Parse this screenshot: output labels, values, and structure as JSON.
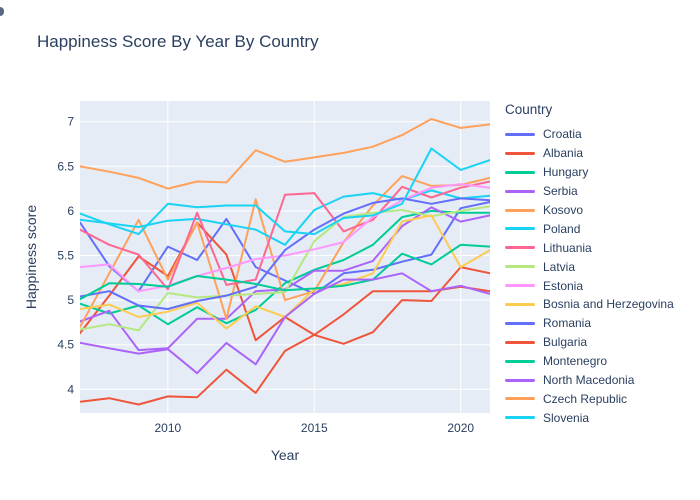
{
  "figure": {
    "background": "#ffffff",
    "plot_background": "#e5ecf6",
    "grid_color": "#ffffff",
    "text_color": "#2a3f5f"
  },
  "chart_data": {
    "type": "line",
    "title": "Happiness Score By Year By Country",
    "xlabel": "Year",
    "ylabel": "Happiness score",
    "legend_title": "Country",
    "legend_position": "right",
    "grid": true,
    "xlim": [
      2007,
      2021
    ],
    "ylim": [
      3.73,
      7.25
    ],
    "xticks": [
      2010,
      2015,
      2020
    ],
    "xtick_labels": [
      "2010",
      "2015",
      "2020"
    ],
    "yticks": [
      4,
      4.5,
      5,
      5.5,
      6,
      6.5,
      7
    ],
    "ytick_labels": [
      "4",
      "4.5",
      "5",
      "5.5",
      "6",
      "6.5",
      "7"
    ],
    "x": [
      2007,
      2008,
      2009,
      2010,
      2011,
      2012,
      2013,
      2014,
      2015,
      2016,
      2017,
      2018,
      2019,
      2020,
      2021
    ],
    "series": [
      {
        "name": "Croatia",
        "color": "#636EFA",
        "values": [
          5.87,
          5.38,
          5.1,
          5.6,
          5.45,
          5.91,
          5.37,
          5.22,
          5.07,
          5.3,
          5.34,
          5.43,
          5.51,
          6.03,
          6.1
        ]
      },
      {
        "name": "Albania",
        "color": "#EF553B",
        "values": [
          4.63,
          5.05,
          5.49,
          5.27,
          5.87,
          5.51,
          4.55,
          4.81,
          4.61,
          4.51,
          4.64,
          5.0,
          4.99,
          5.37,
          5.3
        ]
      },
      {
        "name": "Hungary",
        "color": "#00CC96",
        "values": [
          4.96,
          4.85,
          4.94,
          4.73,
          4.92,
          4.74,
          4.89,
          5.19,
          5.34,
          5.45,
          5.62,
          5.93,
          6.0,
          5.98,
          5.98
        ]
      },
      {
        "name": "Serbia",
        "color": "#AB63FA",
        "values": [
          4.76,
          4.88,
          4.44,
          4.46,
          4.79,
          4.79,
          5.1,
          5.12,
          5.33,
          5.33,
          5.44,
          5.83,
          6.04,
          5.88,
          5.95
        ]
      },
      {
        "name": "Kosovo",
        "color": "#FFA15A",
        "values": [
          4.7,
          5.3,
          5.9,
          5.23,
          5.87,
          4.79,
          6.13,
          5.0,
          5.1,
          5.65,
          6.06,
          6.39,
          6.28,
          6.29,
          6.37
        ]
      },
      {
        "name": "Poland",
        "color": "#19D3F3",
        "values": [
          5.9,
          5.86,
          5.82,
          5.89,
          5.91,
          5.85,
          5.79,
          5.62,
          6.01,
          6.16,
          6.2,
          6.12,
          6.23,
          6.14,
          6.17
        ]
      },
      {
        "name": "Lithuania",
        "color": "#FF6692",
        "values": [
          5.79,
          5.62,
          5.51,
          5.12,
          5.98,
          5.17,
          5.23,
          6.18,
          6.2,
          5.77,
          5.9,
          6.27,
          6.15,
          6.26,
          6.33
        ]
      },
      {
        "name": "Latvia",
        "color": "#B6E880",
        "values": [
          4.67,
          4.73,
          4.66,
          5.08,
          5.03,
          5.05,
          5.07,
          5.09,
          5.66,
          5.93,
          5.98,
          6.01,
          5.94,
          6.0,
          6.05
        ]
      },
      {
        "name": "Estonia",
        "color": "#FF97FF",
        "values": [
          5.37,
          5.4,
          5.1,
          5.16,
          5.27,
          5.36,
          5.46,
          5.5,
          5.57,
          5.65,
          5.93,
          6.12,
          6.26,
          6.3,
          6.26
        ]
      },
      {
        "name": "Bosnia and Herzegovina",
        "color": "#FECB52",
        "values": [
          4.9,
          4.95,
          4.81,
          4.87,
          4.97,
          4.68,
          4.93,
          4.81,
          5.12,
          5.18,
          5.3,
          5.88,
          5.95,
          5.37,
          5.56
        ]
      },
      {
        "name": "Romania",
        "color": "#636EFA",
        "values": [
          5.04,
          5.1,
          4.94,
          4.9,
          4.99,
          5.05,
          5.15,
          5.56,
          5.79,
          5.97,
          6.09,
          6.14,
          6.08,
          6.14,
          6.12
        ]
      },
      {
        "name": "Bulgaria",
        "color": "#EF553B",
        "values": [
          3.86,
          3.9,
          3.83,
          3.92,
          3.91,
          4.22,
          3.96,
          4.43,
          4.61,
          4.84,
          5.1,
          5.1,
          5.1,
          5.15,
          5.1
        ]
      },
      {
        "name": "Montenegro",
        "color": "#00CC96",
        "values": [
          5.01,
          5.19,
          5.18,
          5.15,
          5.27,
          5.23,
          5.18,
          5.11,
          5.13,
          5.16,
          5.23,
          5.52,
          5.4,
          5.62,
          5.6
        ]
      },
      {
        "name": "North Macedonia",
        "color": "#AB63FA",
        "values": [
          4.52,
          4.46,
          4.4,
          4.45,
          4.18,
          4.52,
          4.28,
          4.81,
          5.07,
          5.23,
          5.23,
          5.3,
          5.1,
          5.16,
          5.07
        ]
      },
      {
        "name": "Czech Republic",
        "color": "#FFA15A",
        "values": [
          6.5,
          6.44,
          6.37,
          6.25,
          6.33,
          6.32,
          6.68,
          6.55,
          6.6,
          6.65,
          6.72,
          6.85,
          7.03,
          6.93,
          6.97
        ]
      },
      {
        "name": "Slovenia",
        "color": "#19D3F3",
        "values": [
          5.97,
          5.85,
          5.74,
          6.08,
          6.04,
          6.06,
          6.06,
          5.77,
          5.74,
          5.92,
          5.95,
          6.08,
          6.7,
          6.46,
          6.57
        ]
      }
    ]
  }
}
